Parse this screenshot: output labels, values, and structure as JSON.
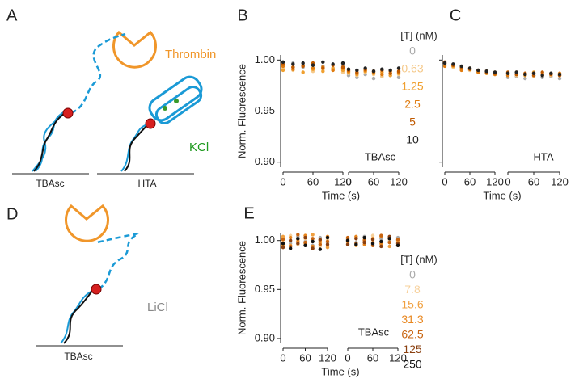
{
  "diagram": {
    "panel_a": "A",
    "panel_d": "D",
    "thrombin": "Thrombin",
    "kcl": "KCl",
    "licl": "LiCl",
    "label_tbasc_a": "TBAsc",
    "label_hta": "HTA",
    "label_tbasc_d": "TBAsc"
  },
  "chart_data": [
    {
      "type": "scatter",
      "panel": "B",
      "ylabel": "Norm. Fluorescence",
      "xlabel": "Time (s)",
      "annotation": "TBAsc",
      "legend_title": "[T] (nM)",
      "xlim": [
        0,
        120
      ],
      "xticks": [
        0,
        60,
        120
      ],
      "ylim": [
        0.895,
        1.005
      ],
      "yticks": [
        {
          "value": 0.9,
          "label": "0.90"
        },
        {
          "value": 0.95,
          "label": "0.95"
        },
        {
          "value": 1.0,
          "label": "1.00"
        }
      ],
      "x": [
        0,
        20,
        40,
        60,
        80,
        100,
        120
      ],
      "series": [
        {
          "name": "0",
          "color": "#aaaaaa",
          "values_before": [
            0.995,
            0.997,
            0.993,
            0.996,
            0.994,
            0.992,
            0.995
          ],
          "values_after": [
            0.985,
            0.983,
            0.986,
            0.982,
            0.984,
            0.985,
            0.983
          ]
        },
        {
          "name": "0.63",
          "color": "#f5c98a",
          "values_before": [
            0.992,
            0.99,
            0.994,
            0.989,
            0.991,
            0.99,
            0.988
          ],
          "values_after": [
            0.987,
            0.985,
            0.988,
            0.986,
            0.984,
            0.987,
            0.986
          ]
        },
        {
          "name": "1.25",
          "color": "#f0a030",
          "values_before": [
            0.99,
            0.993,
            0.988,
            0.991,
            0.989,
            0.992,
            0.99
          ],
          "values_after": [
            0.988,
            0.986,
            0.989,
            0.987,
            0.988,
            0.985,
            0.987
          ]
        },
        {
          "name": "2.5",
          "color": "#e07c10",
          "values_before": [
            0.994,
            0.991,
            0.995,
            0.992,
            0.993,
            0.99,
            0.992
          ],
          "values_after": [
            0.989,
            0.987,
            0.99,
            0.988,
            0.986,
            0.989,
            0.988
          ]
        },
        {
          "name": "5",
          "color": "#c05a00",
          "values_before": [
            0.996,
            0.993,
            0.994,
            0.997,
            0.992,
            0.995,
            0.993
          ],
          "values_after": [
            0.99,
            0.988,
            0.991,
            0.989,
            0.99,
            0.987,
            0.989
          ]
        },
        {
          "name": "10",
          "color": "#222222",
          "values_before": [
            0.998,
            0.996,
            0.997,
            0.995,
            0.998,
            0.996,
            0.997
          ],
          "values_after": [
            0.991,
            0.99,
            0.992,
            0.989,
            0.991,
            0.99,
            0.992
          ]
        }
      ]
    },
    {
      "type": "scatter",
      "panel": "C",
      "xlabel": "Time (s)",
      "annotation": "HTA",
      "xlim": [
        0,
        120
      ],
      "xticks": [
        0,
        60,
        120
      ],
      "ylim": [
        0.895,
        1.005
      ],
      "yticks": [
        0.9,
        0.95,
        1.0
      ],
      "x": [
        0,
        20,
        40,
        60,
        80,
        100,
        120
      ],
      "series": [
        {
          "name": "0",
          "color": "#aaaaaa",
          "values_before": [
            0.996,
            0.994,
            0.993,
            0.99,
            0.989,
            0.988,
            0.987
          ],
          "values_after": [
            0.983,
            0.984,
            0.982,
            0.985,
            0.983,
            0.984,
            0.982
          ]
        },
        {
          "name": "0.63",
          "color": "#f5c98a",
          "values_before": [
            0.995,
            0.993,
            0.991,
            0.99,
            0.988,
            0.987,
            0.986
          ],
          "values_after": [
            0.986,
            0.985,
            0.987,
            0.984,
            0.986,
            0.985,
            0.986
          ]
        },
        {
          "name": "1.25",
          "color": "#f0a030",
          "values_before": [
            0.997,
            0.994,
            0.992,
            0.991,
            0.989,
            0.987,
            0.988
          ],
          "values_after": [
            0.987,
            0.986,
            0.985,
            0.988,
            0.986,
            0.987,
            0.985
          ]
        },
        {
          "name": "2.5",
          "color": "#e07c10",
          "values_before": [
            0.994,
            0.995,
            0.99,
            0.992,
            0.988,
            0.989,
            0.986
          ],
          "values_after": [
            0.985,
            0.988,
            0.986,
            0.987,
            0.985,
            0.986,
            0.987
          ]
        },
        {
          "name": "5",
          "color": "#c05a00",
          "values_before": [
            0.998,
            0.995,
            0.993,
            0.991,
            0.99,
            0.988,
            0.987
          ],
          "values_after": [
            0.988,
            0.986,
            0.987,
            0.985,
            0.988,
            0.986,
            0.985
          ]
        },
        {
          "name": "10",
          "color": "#222222",
          "values_before": [
            0.997,
            0.996,
            0.994,
            0.992,
            0.99,
            0.989,
            0.988
          ],
          "values_after": [
            0.987,
            0.988,
            0.986,
            0.987,
            0.985,
            0.987,
            0.986
          ]
        }
      ]
    },
    {
      "type": "scatter",
      "panel": "E",
      "ylabel": "Norm. Fluorescence",
      "xlabel": "Time (s)",
      "annotation": "TBAsc",
      "legend_title": "[T] (nM)",
      "xlim": [
        0,
        120
      ],
      "xticks": [
        0,
        60,
        120
      ],
      "ylim": [
        0.895,
        1.008
      ],
      "yticks": [
        {
          "value": 0.9,
          "label": "0.90"
        },
        {
          "value": 0.95,
          "label": "0.95"
        },
        {
          "value": 1.0,
          "label": "1.00"
        }
      ],
      "x": [
        0,
        20,
        40,
        60,
        80,
        100,
        120
      ],
      "series": [
        {
          "name": "0",
          "color": "#aaaaaa",
          "values_before": [
            1.002,
            0.997,
            1.004,
            0.999,
            0.995,
            1.003,
            0.998
          ],
          "values_after": [
            1.001,
            0.998,
            1.004,
            0.996,
            1.002,
            0.999,
            1.003
          ]
        },
        {
          "name": "7.8",
          "color": "#f7d09a",
          "values_before": [
            0.998,
            1.005,
            0.996,
            1.002,
            0.999,
            0.994,
            1.001
          ],
          "values_after": [
            0.997,
            1.003,
            0.999,
            1.005,
            0.996,
            1.001,
            0.998
          ]
        },
        {
          "name": "15.6",
          "color": "#f0a040",
          "values_before": [
            1.004,
            0.995,
            1.001,
            0.997,
            1.006,
            0.998,
            0.993
          ],
          "values_after": [
            1.002,
            0.995,
            1.001,
            0.998,
            1.004,
            0.994,
            1.0
          ]
        },
        {
          "name": "31.3",
          "color": "#e8861e",
          "values_before": [
            0.996,
            1.003,
            0.999,
            1.005,
            0.994,
            1.0,
            1.004
          ],
          "values_after": [
            0.999,
            1.004,
            0.996,
            1.002,
            0.997,
            1.003,
            0.995
          ]
        },
        {
          "name": "62.5",
          "color": "#c86410",
          "values_before": [
            1.001,
            0.994,
            1.006,
            0.998,
            1.002,
            0.996,
            0.999
          ],
          "values_after": [
            1.003,
            0.997,
            1.0,
            0.995,
            1.005,
            0.998,
            1.001
          ]
        },
        {
          "name": "125",
          "color": "#8a4010",
          "values_before": [
            0.993,
            1.0,
            0.997,
            1.003,
            0.992,
            1.001,
            0.996
          ],
          "values_after": [
            0.996,
            1.002,
            0.998,
            1.001,
            0.994,
            1.004,
            0.997
          ]
        },
        {
          "name": "250",
          "color": "#111111",
          "values_before": [
            0.997,
            0.992,
            1.002,
            0.995,
            0.999,
            0.991,
            1.003
          ],
          "values_after": [
            1.0,
            0.996,
            1.003,
            0.997,
            0.999,
            1.002,
            0.995
          ]
        }
      ]
    }
  ]
}
